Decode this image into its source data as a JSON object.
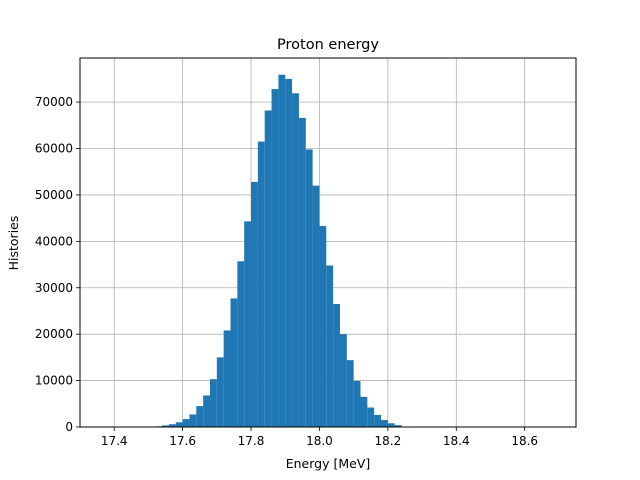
{
  "chart_data": {
    "type": "bar",
    "title": "Proton energy",
    "xlabel": "Energy [MeV]",
    "ylabel": "Histories",
    "xlim": [
      17.3,
      18.75
    ],
    "ylim": [
      0,
      79500
    ],
    "grid": true,
    "bar_color": "#1f77b4",
    "x_ticks": [
      17.4,
      17.6,
      17.8,
      18.0,
      18.2,
      18.4,
      18.6
    ],
    "x_tick_labels": [
      "17.4",
      "17.6",
      "17.8",
      "18.0",
      "18.2",
      "18.4",
      "18.6"
    ],
    "y_ticks": [
      0,
      10000,
      20000,
      30000,
      40000,
      50000,
      60000,
      70000
    ],
    "y_tick_labels": [
      "0",
      "10000",
      "20000",
      "30000",
      "40000",
      "50000",
      "60000",
      "70000"
    ],
    "bin_start": 17.5,
    "bin_width": 0.02,
    "values": [
      50,
      150,
      350,
      600,
      1000,
      1700,
      2700,
      4500,
      6800,
      10300,
      15000,
      20800,
      27700,
      35700,
      44300,
      52800,
      61500,
      68200,
      72800,
      75900,
      75000,
      71900,
      66600,
      59800,
      52000,
      43300,
      34800,
      26500,
      20000,
      14400,
      9900,
      6500,
      4200,
      2600,
      1500,
      800,
      400,
      100
    ]
  }
}
